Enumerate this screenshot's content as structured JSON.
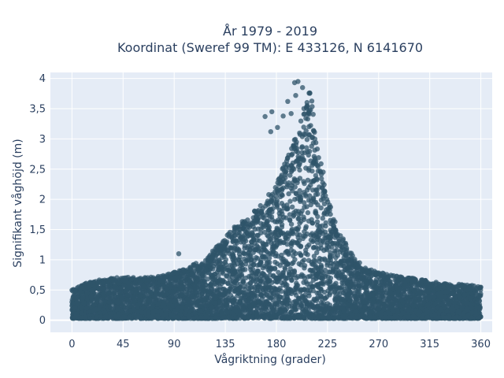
{
  "chart_data": {
    "type": "scatter",
    "title_lines": [
      "År 1979 - 2019",
      "Koordinat (Sweref 99 TM): E 433126, N 6141670"
    ],
    "xlabel": "Vågriktning (grader)",
    "ylabel": "Signifikant våghöjd (m)",
    "xlim": [
      -19,
      370
    ],
    "ylim": [
      -0.2,
      4.1
    ],
    "x_ticks": [
      0,
      45,
      90,
      135,
      180,
      225,
      270,
      315,
      360
    ],
    "x_tick_labels": [
      "0",
      "45",
      "90",
      "135",
      "180",
      "225",
      "270",
      "315",
      "360"
    ],
    "y_ticks": [
      0,
      0.5,
      1,
      1.5,
      2,
      2.5,
      3,
      3.5,
      4
    ],
    "y_tick_labels": [
      "0",
      "0,5",
      "1",
      "1,5",
      "2",
      "2,5",
      "3",
      "3,5",
      "4"
    ],
    "grid": true,
    "plot_background": "#e5ecf6",
    "marker_color": "#2f5469",
    "envelope_note_free": true,
    "series": [
      {
        "direction_deg": [
          0,
          10,
          20,
          30,
          45,
          60,
          75,
          90,
          100,
          110,
          120,
          130,
          135,
          140,
          150,
          160,
          170,
          180,
          185,
          190,
          195,
          200,
          205,
          210,
          215,
          220,
          225,
          230,
          240,
          250,
          260,
          270,
          280,
          290,
          300,
          315,
          330,
          345,
          360
        ],
        "max_height_m": [
          0.5,
          0.6,
          0.65,
          0.7,
          0.72,
          0.7,
          0.72,
          0.8,
          0.85,
          0.95,
          1.05,
          1.3,
          1.4,
          1.5,
          1.65,
          1.8,
          2.0,
          2.25,
          2.5,
          2.7,
          2.95,
          3.2,
          3.6,
          3.95,
          2.9,
          2.6,
          2.1,
          1.7,
          1.3,
          1.0,
          0.85,
          0.8,
          0.75,
          0.72,
          0.7,
          0.65,
          0.6,
          0.6,
          0.55
        ]
      }
    ],
    "outliers": [
      {
        "x": 196,
        "y": 3.93
      },
      {
        "x": 199,
        "y": 3.95
      },
      {
        "x": 203,
        "y": 3.85
      },
      {
        "x": 190,
        "y": 3.62
      },
      {
        "x": 197,
        "y": 3.72
      },
      {
        "x": 207,
        "y": 3.55
      },
      {
        "x": 176,
        "y": 3.45
      },
      {
        "x": 170,
        "y": 3.37
      },
      {
        "x": 186,
        "y": 3.38
      },
      {
        "x": 193,
        "y": 3.42
      },
      {
        "x": 181,
        "y": 3.19
      },
      {
        "x": 175,
        "y": 3.12
      },
      {
        "x": 94,
        "y": 1.1
      }
    ]
  }
}
